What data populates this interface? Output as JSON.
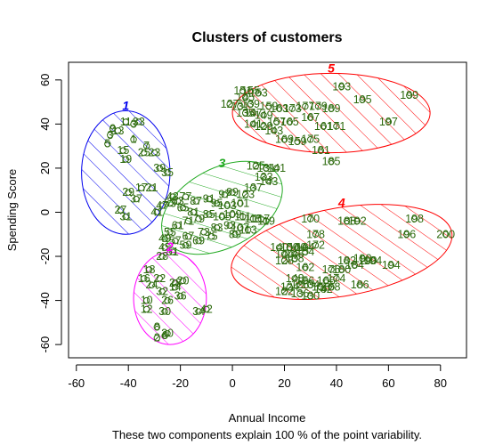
{
  "chart_data": {
    "type": "scatter",
    "title": "Clusters of customers",
    "xlabel": "Annual Income",
    "ylabel": "Spending Score",
    "subtitle": "These two components explain 100 % of the point variability.",
    "xlim": [
      -63,
      90
    ],
    "ylim": [
      -66,
      68
    ],
    "xticks": [
      -60,
      -40,
      -20,
      0,
      20,
      40,
      60,
      80
    ],
    "yticks": [
      -60,
      -40,
      -20,
      0,
      20,
      40,
      60
    ],
    "grid": false,
    "point_color": "#2e6b0f",
    "clusters": [
      {
        "id": "1",
        "color": "#0000ee",
        "center": [
          -41,
          18
        ],
        "rx": 17,
        "ry": 28,
        "angle": 0,
        "points": [
          [
            -46,
            38,
            "9"
          ],
          [
            -47,
            35,
            "3"
          ],
          [
            -44,
            37,
            "13"
          ],
          [
            -41,
            41,
            "11"
          ],
          [
            -38,
            40,
            "3"
          ],
          [
            -36,
            41,
            "33"
          ],
          [
            -38,
            33,
            "1"
          ],
          [
            -48,
            31,
            "5"
          ],
          [
            -42,
            28,
            "15"
          ],
          [
            -41,
            24,
            "19"
          ],
          [
            -33,
            30,
            "7"
          ],
          [
            -30,
            27,
            "23"
          ],
          [
            -34,
            27,
            "25"
          ],
          [
            -28,
            20,
            "39"
          ],
          [
            -25,
            18,
            "35"
          ],
          [
            -35,
            11,
            "17"
          ],
          [
            -31,
            11,
            "21"
          ],
          [
            -40,
            9,
            "29"
          ],
          [
            -37,
            6,
            "37"
          ],
          [
            -43,
            1,
            "27"
          ],
          [
            -41,
            -2,
            "31"
          ]
        ]
      },
      {
        "id": "2",
        "color": "#ff00ff",
        "center": [
          -24,
          -39
        ],
        "rx": 14,
        "ry": 21,
        "angle": 0,
        "points": [
          [
            -27,
            -20,
            "28"
          ],
          [
            -32,
            -26,
            "18"
          ],
          [
            -34,
            -30,
            "16"
          ],
          [
            -28,
            -30,
            "22"
          ],
          [
            -22,
            -32,
            "28"
          ],
          [
            -19,
            -31,
            "20"
          ],
          [
            -31,
            -33,
            "24"
          ],
          [
            -27,
            -36,
            "32"
          ],
          [
            -22,
            -34,
            "14"
          ],
          [
            -33,
            -40,
            "10"
          ],
          [
            -25,
            -40,
            "26"
          ],
          [
            -20,
            -38,
            "36"
          ],
          [
            -33,
            -44,
            "12"
          ],
          [
            -26,
            -45,
            "30"
          ],
          [
            -13,
            -45,
            "34"
          ],
          [
            -10,
            -44,
            "42"
          ],
          [
            -29,
            -52,
            "8"
          ],
          [
            -25,
            -55,
            "20"
          ],
          [
            -29,
            -57,
            "2"
          ],
          [
            -26,
            -56,
            "6"
          ]
        ]
      },
      {
        "id": "3",
        "color": "#22aa22",
        "center": [
          -4,
          2
        ],
        "rx": 25,
        "ry": 18,
        "angle": 28,
        "points": [
          [
            9,
            21,
            "125"
          ],
          [
            13,
            20,
            "131"
          ],
          [
            17,
            20,
            "141"
          ],
          [
            12,
            16,
            "133"
          ],
          [
            14,
            14,
            "143"
          ],
          [
            8,
            11,
            "137"
          ],
          [
            5,
            8,
            "123"
          ],
          [
            0,
            9,
            "99"
          ],
          [
            -3,
            8,
            "97"
          ],
          [
            3,
            4,
            "101"
          ],
          [
            -2,
            3,
            "103"
          ],
          [
            -6,
            4,
            "95"
          ],
          [
            -9,
            6,
            "91"
          ],
          [
            -14,
            5,
            "87"
          ],
          [
            -18,
            7,
            "77"
          ],
          [
            -21,
            5,
            "63"
          ],
          [
            -19,
            2,
            "65"
          ],
          [
            -24,
            4,
            "53"
          ],
          [
            -27,
            3,
            "47"
          ],
          [
            -23,
            7,
            "43"
          ],
          [
            -15,
            0,
            "81"
          ],
          [
            -9,
            -1,
            "85"
          ],
          [
            -4,
            -2,
            "105"
          ],
          [
            0,
            -1,
            "109"
          ],
          [
            4,
            -2,
            "111"
          ],
          [
            8,
            -3,
            "115"
          ],
          [
            11,
            -3,
            "117"
          ],
          [
            13,
            -4,
            "119"
          ],
          [
            -13,
            -3,
            "79"
          ],
          [
            -17,
            -4,
            "71"
          ],
          [
            -21,
            -6,
            "61"
          ],
          [
            -24,
            -9,
            "55"
          ],
          [
            -26,
            -12,
            "49"
          ],
          [
            -22,
            -13,
            "57"
          ],
          [
            -17,
            -11,
            "67"
          ],
          [
            -11,
            -9,
            "73"
          ],
          [
            -6,
            -7,
            "83"
          ],
          [
            -1,
            -6,
            "93"
          ],
          [
            3,
            -7,
            "107"
          ],
          [
            6,
            -8,
            "113"
          ],
          [
            -26,
            -16,
            "45"
          ],
          [
            -23,
            -18,
            "51"
          ],
          [
            -18,
            -15,
            "59"
          ],
          [
            -13,
            -13,
            "69"
          ],
          [
            -8,
            -11,
            "75"
          ],
          [
            1,
            -10,
            "89"
          ],
          [
            -29,
            0,
            "41"
          ]
        ]
      },
      {
        "id": "4",
        "color": "#ff0000",
        "center": [
          42,
          -18
        ],
        "rx": 43,
        "ry": 20,
        "angle": 10,
        "points": [
          [
            30,
            -3,
            "170"
          ],
          [
            44,
            -4,
            "188"
          ],
          [
            48,
            -4,
            "192"
          ],
          [
            70,
            -3,
            "198"
          ],
          [
            82,
            -10,
            "200"
          ],
          [
            67,
            -10,
            "196"
          ],
          [
            32,
            -10,
            "178"
          ],
          [
            18,
            -16,
            "140"
          ],
          [
            22,
            -16,
            "150"
          ],
          [
            25,
            -16,
            "160"
          ],
          [
            28,
            -16,
            "164"
          ],
          [
            32,
            -15,
            "172"
          ],
          [
            20,
            -19,
            "144"
          ],
          [
            24,
            -19,
            "146"
          ],
          [
            28,
            -18,
            "154"
          ],
          [
            20,
            -22,
            "128"
          ],
          [
            24,
            -21,
            "138"
          ],
          [
            44,
            -22,
            "182"
          ],
          [
            50,
            -21,
            "190"
          ],
          [
            54,
            -22,
            "194"
          ],
          [
            28,
            -25,
            "162"
          ],
          [
            38,
            -26,
            "176"
          ],
          [
            42,
            -26,
            "180"
          ],
          [
            47,
            -24,
            "184"
          ],
          [
            52,
            -22,
            "190"
          ],
          [
            61,
            -24,
            "194"
          ],
          [
            24,
            -30,
            "148"
          ],
          [
            28,
            -31,
            "156"
          ],
          [
            36,
            -31,
            "166"
          ],
          [
            40,
            -30,
            "174"
          ],
          [
            22,
            -34,
            "124"
          ],
          [
            26,
            -33,
            "126"
          ],
          [
            30,
            -33,
            "134"
          ],
          [
            34,
            -34,
            "158"
          ],
          [
            38,
            -34,
            "168"
          ],
          [
            49,
            -33,
            "186"
          ],
          [
            20,
            -36,
            "122"
          ],
          [
            26,
            -37,
            "136"
          ],
          [
            30,
            -38,
            "130"
          ],
          [
            35,
            -35,
            "142"
          ]
        ]
      },
      {
        "id": "5",
        "color": "#ff0000",
        "center": [
          38,
          45
        ],
        "rx": 38,
        "ry": 18,
        "angle": 0,
        "points": [
          [
            4,
            55,
            "151"
          ],
          [
            7,
            55,
            "155"
          ],
          [
            10,
            54,
            "153"
          ],
          [
            5,
            52,
            "145"
          ],
          [
            -1,
            49,
            "127"
          ],
          [
            3,
            48,
            "131"
          ],
          [
            7,
            49,
            "139"
          ],
          [
            14,
            48,
            "159"
          ],
          [
            18,
            47,
            "163"
          ],
          [
            23,
            47,
            "173"
          ],
          [
            28,
            48,
            "177"
          ],
          [
            33,
            48,
            "179"
          ],
          [
            38,
            47,
            "189"
          ],
          [
            42,
            57,
            "193"
          ],
          [
            50,
            51,
            "195"
          ],
          [
            68,
            53,
            "199"
          ],
          [
            5,
            45,
            "135"
          ],
          [
            8,
            45,
            "147"
          ],
          [
            12,
            44,
            "149"
          ],
          [
            17,
            41,
            "157"
          ],
          [
            22,
            41,
            "165"
          ],
          [
            30,
            43,
            "167"
          ],
          [
            35,
            39,
            "161"
          ],
          [
            40,
            39,
            "171"
          ],
          [
            8,
            40,
            "141"
          ],
          [
            12,
            39,
            "129"
          ],
          [
            16,
            37,
            "143"
          ],
          [
            20,
            33,
            "169"
          ],
          [
            25,
            32,
            "159"
          ],
          [
            30,
            33,
            "175"
          ],
          [
            34,
            28,
            "181"
          ],
          [
            38,
            23,
            "185"
          ],
          [
            60,
            41,
            "197"
          ]
        ]
      }
    ]
  }
}
